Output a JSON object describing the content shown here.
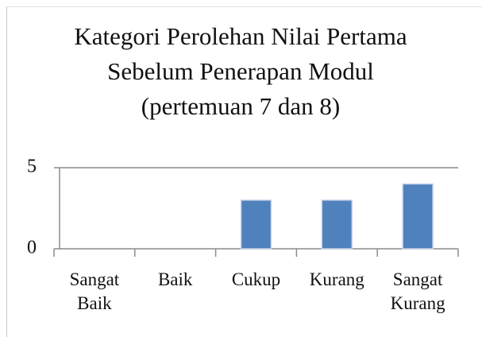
{
  "chart_data": {
    "type": "bar",
    "title": "Kategori Perolehan Nilai Pertama Sebelum Penerapan Modul (pertemuan 7 dan 8)",
    "categories": [
      "Sangat Baik",
      "Baik",
      "Cukup",
      "Kurang",
      "Sangat Kurang"
    ],
    "values": [
      0,
      0,
      3,
      3,
      4
    ],
    "color": "#4f81bd",
    "ylim": [
      0,
      5
    ],
    "yticks": [
      0,
      5
    ],
    "grid": true
  }
}
